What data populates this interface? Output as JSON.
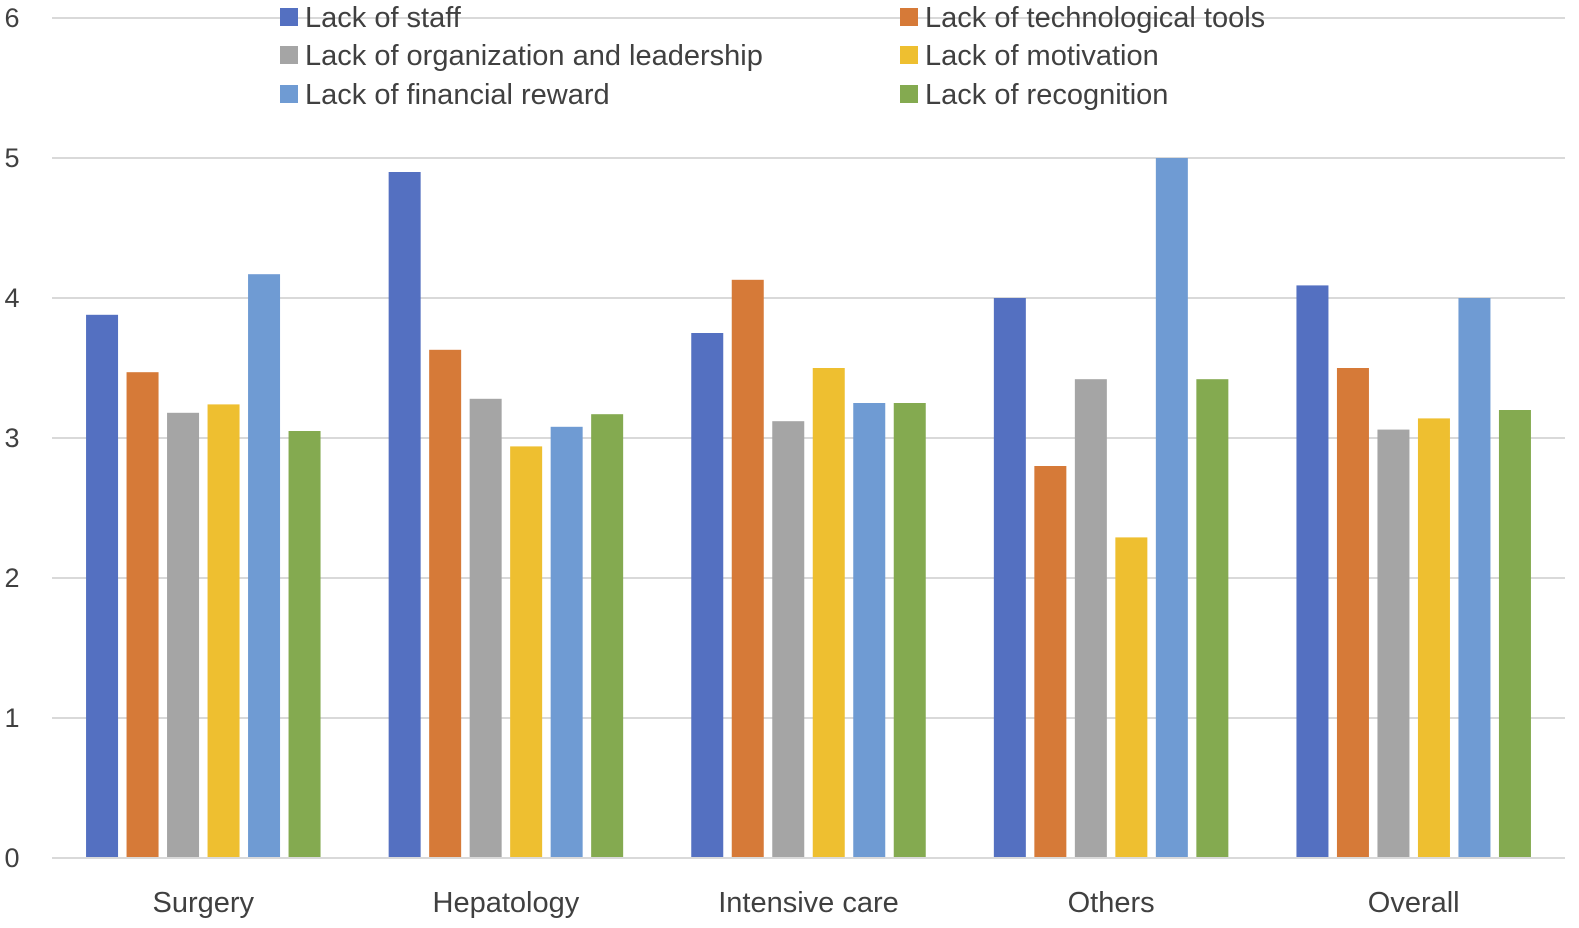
{
  "chart_data": {
    "type": "bar",
    "categories": [
      "Surgery",
      "Hepatology",
      "Intensive care",
      "Others",
      "Overall"
    ],
    "series": [
      {
        "name": "Lack of staff",
        "color": "#5470C1",
        "values": [
          3.88,
          4.9,
          3.75,
          4.0,
          4.09
        ]
      },
      {
        "name": "Lack of technological tools",
        "color": "#D67A38",
        "values": [
          3.47,
          3.63,
          4.13,
          2.8,
          3.5
        ]
      },
      {
        "name": "Lack of organization and leadership",
        "color": "#A5A5A5",
        "values": [
          3.18,
          3.28,
          3.12,
          3.42,
          3.06
        ]
      },
      {
        "name": "Lack of motivation",
        "color": "#EEBF30",
        "values": [
          3.24,
          2.94,
          3.5,
          2.29,
          3.14
        ]
      },
      {
        "name": "Lack of financial reward",
        "color": "#6F9BD3",
        "values": [
          4.17,
          3.08,
          3.25,
          5.0,
          4.0
        ]
      },
      {
        "name": "Lack of recognition",
        "color": "#84AA50",
        "values": [
          3.05,
          3.17,
          3.25,
          3.42,
          3.2
        ]
      }
    ],
    "ylim": [
      0,
      6
    ],
    "yticks": [
      "0",
      "1",
      "2",
      "3",
      "4",
      "5",
      "6"
    ],
    "grid": true,
    "legend_position": "top",
    "title": "",
    "xlabel": "",
    "ylabel": ""
  }
}
